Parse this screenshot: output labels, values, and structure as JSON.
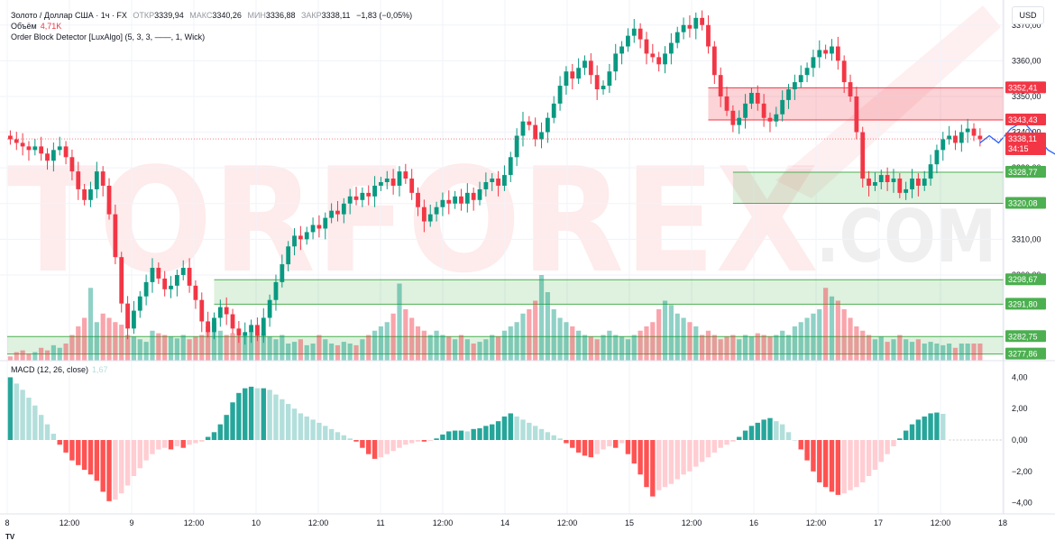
{
  "header": {
    "symbol": "Золото / Доллар США · 1ч · FX",
    "ohlc": [
      {
        "label": "ОТКР",
        "value": "3339,94"
      },
      {
        "label": "МАКС",
        "value": "3340,26"
      },
      {
        "label": "МИН",
        "value": "3336,88"
      },
      {
        "label": "ЗАКР",
        "value": "3338,11"
      }
    ],
    "change": "−1,83 (−0,05%)",
    "volume_label": "Объём",
    "volume_value": "4,71K",
    "indicator": "Order Block Detector [LuxAlgo] (5, 3, 3, ——, 1, Wick)",
    "macd_label": "MACD (12, 26, close)",
    "macd_value": "1,67",
    "currency_button": "USD",
    "footer_logo": "TV"
  },
  "watermark": {
    "word1": "TORFOREX",
    "word2": ".COM"
  },
  "colors": {
    "up": "#089981",
    "down": "#f23645",
    "up_light": "#b2dfdb",
    "down_light": "#ffcdd2",
    "forecast": "#2962ff",
    "bull_zone": "#4caf50",
    "bear_zone": "#f23645"
  },
  "chart_data": {
    "type": "candlestick",
    "title": "Золото / Доллар США · 1ч · FX",
    "price_axis": {
      "ticks": [
        "3370,00",
        "3360,00",
        "3350,00",
        "3340,00",
        "3330,00",
        "3320,00",
        "3310,00",
        "3300,00"
      ],
      "range": [
        3276,
        3376
      ]
    },
    "time_axis": {
      "ticks": [
        "8",
        "12:00",
        "9",
        "12:00",
        "10",
        "12:00",
        "11",
        "12:00",
        "14",
        "12:00",
        "15",
        "12:00",
        "16",
        "12:00",
        "17",
        "12:00",
        "18"
      ]
    },
    "last_price": {
      "value": "3338,11",
      "countdown": "34:15"
    },
    "order_blocks": [
      {
        "type": "bearish",
        "top": 3352.41,
        "bottom": 3343.43,
        "top_label": "3352,41",
        "bottom_label": "3343,43"
      },
      {
        "type": "bullish",
        "top": 3328.77,
        "bottom": 3320.08,
        "top_label": "3328,77",
        "bottom_label": "3320,08"
      },
      {
        "type": "bullish",
        "top": 3298.67,
        "bottom": 3291.8,
        "top_label": "3298,67",
        "bottom_label": "3291,80"
      },
      {
        "type": "bullish",
        "top": 3282.75,
        "bottom": 3277.86,
        "top_label": "3282,75",
        "bottom_label": "3277,86"
      }
    ],
    "candles_close": [
      3338,
      3337,
      3336,
      3335,
      3336,
      3334,
      3332,
      3335,
      3336,
      3333,
      3329,
      3324,
      3321,
      3324,
      3329,
      3325,
      3317,
      3305,
      3292,
      3285,
      3290,
      3294,
      3298,
      3302,
      3299,
      3296,
      3297,
      3300,
      3302,
      3297,
      3293,
      3287,
      3284,
      3288,
      3291,
      3289,
      3285,
      3283,
      3284,
      3286,
      3283,
      3288,
      3293,
      3298,
      3303,
      3308,
      3311,
      3310,
      3312,
      3314,
      3313,
      3316,
      3318,
      3317,
      3320,
      3322,
      3321,
      3323,
      3322,
      3325,
      3326,
      3327,
      3325,
      3329,
      3327,
      3323,
      3319,
      3315,
      3317,
      3319,
      3321,
      3320,
      3322,
      3320,
      3323,
      3321,
      3324,
      3326,
      3327,
      3325,
      3328,
      3333,
      3339,
      3343,
      3342,
      3338,
      3340,
      3344,
      3348,
      3353,
      3357,
      3355,
      3358,
      3360,
      3356,
      3352,
      3353,
      3357,
      3362,
      3364,
      3367,
      3369,
      3366,
      3362,
      3361,
      3359,
      3362,
      3365,
      3368,
      3370,
      3369,
      3372,
      3370,
      3364,
      3356,
      3350,
      3346,
      3342,
      3344,
      3348,
      3351,
      3348,
      3344,
      3343,
      3345,
      3349,
      3352,
      3354,
      3356,
      3358,
      3361,
      3363,
      3362,
      3364,
      3360,
      3354,
      3350,
      3340,
      3327,
      3325,
      3326,
      3328,
      3326,
      3327,
      3323,
      3324,
      3327,
      3325,
      3327,
      3331,
      3335,
      3338,
      3339,
      3337,
      3340,
      3341,
      3339,
      3338
    ],
    "volume_relative": [
      0.05,
      0.1,
      0.12,
      0.08,
      0.1,
      0.15,
      0.12,
      0.18,
      0.15,
      0.2,
      0.3,
      0.4,
      0.5,
      0.85,
      0.45,
      0.55,
      0.5,
      0.45,
      0.42,
      0.3,
      0.28,
      0.25,
      0.22,
      0.35,
      0.32,
      0.3,
      0.28,
      0.26,
      0.3,
      0.25,
      0.28,
      0.3,
      0.4,
      0.45,
      0.35,
      0.3,
      0.32,
      0.28,
      0.3,
      0.35,
      0.3,
      0.32,
      0.28,
      0.25,
      0.3,
      0.2,
      0.22,
      0.25,
      0.18,
      0.2,
      0.3,
      0.25,
      0.2,
      0.18,
      0.22,
      0.2,
      0.18,
      0.25,
      0.3,
      0.35,
      0.4,
      0.45,
      0.55,
      0.9,
      0.6,
      0.5,
      0.4,
      0.35,
      0.3,
      0.35,
      0.3,
      0.28,
      0.25,
      0.3,
      0.25,
      0.2,
      0.22,
      0.25,
      0.3,
      0.28,
      0.35,
      0.4,
      0.45,
      0.55,
      0.6,
      0.7,
      1.0,
      0.8,
      0.6,
      0.5,
      0.45,
      0.4,
      0.35,
      0.3,
      0.28,
      0.25,
      0.3,
      0.35,
      0.3,
      0.28,
      0.25,
      0.3,
      0.35,
      0.4,
      0.45,
      0.6,
      0.7,
      0.65,
      0.55,
      0.5,
      0.45,
      0.4,
      0.3,
      0.35,
      0.3,
      0.25,
      0.28,
      0.3,
      0.25,
      0.3,
      0.28,
      0.32,
      0.3,
      0.28,
      0.3,
      0.35,
      0.3,
      0.4,
      0.45,
      0.5,
      0.55,
      0.6,
      0.85,
      0.75,
      0.7,
      0.6,
      0.5,
      0.4,
      0.35,
      0.3,
      0.25,
      0.28,
      0.22,
      0.25,
      0.3,
      0.25,
      0.22,
      0.25,
      0.2,
      0.22,
      0.2,
      0.18,
      0.2,
      0.15
    ],
    "macd_axis": {
      "ticks": [
        "4,00",
        "2,00",
        "0,00",
        "−2,00",
        "−4,00"
      ],
      "range": [
        -4.6,
        4.6
      ]
    },
    "macd_hist": [
      4.0,
      3.6,
      3.2,
      2.7,
      2.2,
      1.6,
      1.0,
      0.4,
      -0.3,
      -0.8,
      -1.3,
      -1.6,
      -1.9,
      -2.2,
      -2.6,
      -3.3,
      -3.9,
      -3.8,
      -3.4,
      -2.9,
      -2.3,
      -1.8,
      -1.3,
      -0.9,
      -0.6,
      -0.5,
      -0.6,
      -0.4,
      -0.5,
      -0.3,
      -0.2,
      -0.1,
      0.2,
      0.5,
      1.0,
      1.6,
      2.4,
      3.0,
      3.3,
      3.4,
      3.3,
      3.3,
      3.2,
      2.9,
      2.6,
      2.3,
      2.0,
      1.7,
      1.5,
      1.3,
      1.1,
      0.9,
      0.7,
      0.5,
      0.3,
      0.1,
      -0.1,
      -0.5,
      -0.9,
      -1.2,
      -1.1,
      -0.9,
      -0.7,
      -0.5,
      -0.3,
      -0.2,
      -0.1,
      -0.1,
      -0.05,
      0.1,
      0.35,
      0.55,
      0.6,
      0.6,
      0.55,
      0.7,
      0.75,
      0.9,
      1.0,
      1.2,
      1.5,
      1.7,
      1.5,
      1.3,
      1.1,
      0.9,
      0.7,
      0.5,
      0.3,
      0.1,
      -0.2,
      -0.5,
      -0.8,
      -1.0,
      -1.1,
      -0.9,
      -0.6,
      -0.4,
      -0.5,
      -0.2,
      -0.9,
      -1.5,
      -2.2,
      -3.0,
      -3.6,
      -3.2,
      -3.0,
      -2.8,
      -2.5,
      -2.2,
      -2.0,
      -1.7,
      -1.4,
      -1.1,
      -0.8,
      -0.5,
      -0.3,
      -0.1,
      0.2,
      0.6,
      0.9,
      1.1,
      1.3,
      1.4,
      1.2,
      1.0,
      0.5,
      0.0,
      -0.6,
      -1.3,
      -2.0,
      -2.7,
      -3.0,
      -3.3,
      -3.5,
      -3.4,
      -3.2,
      -3.0,
      -2.7,
      -2.3,
      -1.9,
      -1.4,
      -0.9,
      -0.4,
      0.1,
      0.6,
      1.0,
      1.3,
      1.5,
      1.7,
      1.75,
      1.67
    ],
    "forecast_path": [
      [
        157,
        3337
      ],
      [
        158.5,
        3339
      ],
      [
        160,
        3337
      ],
      [
        162,
        3341
      ],
      [
        164,
        3343
      ],
      [
        166,
        3339
      ],
      [
        168,
        3335
      ],
      [
        170,
        3333
      ],
      [
        172,
        3329
      ],
      [
        174,
        3326
      ],
      [
        176,
        3330
      ],
      [
        177.5,
        3332
      ]
    ],
    "legend": "none",
    "grid": true
  }
}
